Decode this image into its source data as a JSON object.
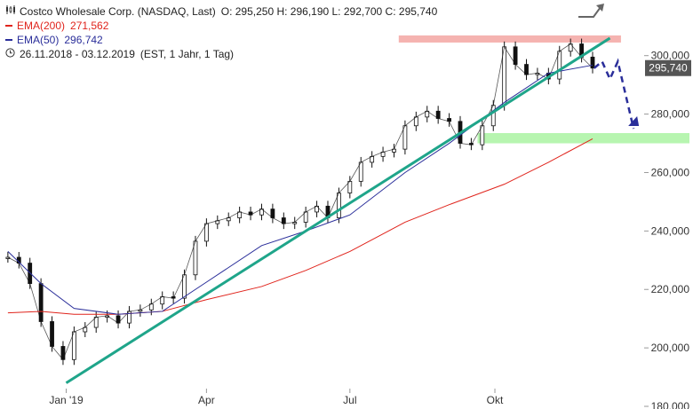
{
  "header": {
    "title_prefix": "Costco Wholesale Corp. (NASDAQ, Last)",
    "ohlc": "O: 295,250  H: 296,190  L: 292,700  C: 295,740",
    "ema200_label": "EMA(200)",
    "ema200_value": "271,562",
    "ema50_label": "EMA(50)",
    "ema50_value": "296,742",
    "range": "26.11.2018 - 03.12.2019",
    "range_info": "(EST, 1 Jahr, 1 Tag)"
  },
  "colors": {
    "price": "#111111",
    "ema200": "#e0241c",
    "ema50": "#2a2e9a",
    "trendline": "#1fa58a",
    "support_zone": "#b7f5b0",
    "resistance_zone": "#f5b3b0",
    "forecast": "#2a2e9a",
    "up_arrow": "#666666",
    "last_badge": "#555555"
  },
  "chart_data": {
    "type": "line",
    "title": "Costco Wholesale Corp. (NASDAQ, Last)",
    "xlabel": "",
    "ylabel": "",
    "ylim": [
      180000,
      305000
    ],
    "yticks": [
      180000,
      200000,
      220000,
      240000,
      260000,
      280000,
      300000
    ],
    "ytick_labels": [
      "180,000",
      "200,000",
      "220,000",
      "240,000",
      "260,000",
      "280,000",
      "300,000"
    ],
    "xtick_labels": [
      "Jan '19",
      "Apr",
      "Jul",
      "Okt"
    ],
    "last_value_label": "295,740",
    "series": [
      {
        "name": "Costco",
        "x": [
          "2018-11-26",
          "2018-12-03",
          "2018-12-10",
          "2018-12-17",
          "2018-12-24",
          "2018-12-31",
          "2019-01-07",
          "2019-01-14",
          "2019-01-21",
          "2019-01-28",
          "2019-02-04",
          "2019-02-11",
          "2019-02-18",
          "2019-02-25",
          "2019-03-04",
          "2019-03-11",
          "2019-03-18",
          "2019-03-25",
          "2019-04-01",
          "2019-04-08",
          "2019-04-15",
          "2019-04-22",
          "2019-04-29",
          "2019-05-06",
          "2019-05-13",
          "2019-05-20",
          "2019-05-27",
          "2019-06-03",
          "2019-06-10",
          "2019-06-17",
          "2019-06-24",
          "2019-07-01",
          "2019-07-08",
          "2019-07-15",
          "2019-07-22",
          "2019-07-29",
          "2019-08-05",
          "2019-08-12",
          "2019-08-19",
          "2019-08-26",
          "2019-09-02",
          "2019-09-09",
          "2019-09-16",
          "2019-09-23",
          "2019-09-30",
          "2019-10-07",
          "2019-10-14",
          "2019-10-21",
          "2019-10-28",
          "2019-11-04",
          "2019-11-11",
          "2019-11-18",
          "2019-11-25",
          "2019-12-02"
        ],
        "values": [
          231000,
          229000,
          222000,
          209000,
          200500,
          196000,
          205500,
          207000,
          210500,
          211000,
          208500,
          212500,
          213000,
          215000,
          217500,
          217000,
          225000,
          236500,
          242500,
          243500,
          244500,
          246500,
          245500,
          247500,
          244500,
          242500,
          243000,
          246500,
          248500,
          244500,
          253000,
          257000,
          263500,
          265500,
          267000,
          268000,
          276000,
          279000,
          281000,
          278500,
          277500,
          270000,
          269500,
          276000,
          283000,
          303000,
          297000,
          293500,
          294000,
          292000,
          301500,
          304000,
          299500,
          295740
        ]
      },
      {
        "name": "EMA(200)",
        "x": [
          "2018-11-26",
          "2018-12-17",
          "2019-01-07",
          "2019-02-04",
          "2019-03-04",
          "2019-04-01",
          "2019-05-06",
          "2019-06-03",
          "2019-07-01",
          "2019-08-05",
          "2019-09-02",
          "2019-10-07",
          "2019-11-04",
          "2019-12-02"
        ],
        "values": [
          212000,
          212500,
          211500,
          211500,
          212500,
          216500,
          221000,
          226500,
          233000,
          243000,
          249000,
          256000,
          263500,
          271562
        ]
      },
      {
        "name": "EMA(50)",
        "x": [
          "2018-11-26",
          "2018-12-17",
          "2019-01-07",
          "2019-02-04",
          "2019-03-04",
          "2019-04-01",
          "2019-05-06",
          "2019-06-03",
          "2019-07-01",
          "2019-08-05",
          "2019-09-02",
          "2019-10-07",
          "2019-11-04",
          "2019-12-02"
        ],
        "values": [
          233000,
          222000,
          213500,
          211500,
          212500,
          222500,
          235000,
          240000,
          245500,
          260000,
          270000,
          284000,
          294000,
          296742
        ]
      }
    ],
    "annotations": {
      "trendline": [
        [
          "2019-01-02",
          188000
        ],
        [
          "2019-12-13",
          306000
        ]
      ],
      "support_zone": [
        270000,
        273500
      ],
      "resistance_zone": [
        304500,
        306000
      ],
      "forecast_path": [
        [
          "2019-12-03",
          295740
        ],
        [
          "2019-12-08",
          298000
        ],
        [
          "2019-12-13",
          292000
        ],
        [
          "2019-12-18",
          298000
        ],
        [
          "2019-12-28",
          275000
        ]
      ]
    }
  }
}
